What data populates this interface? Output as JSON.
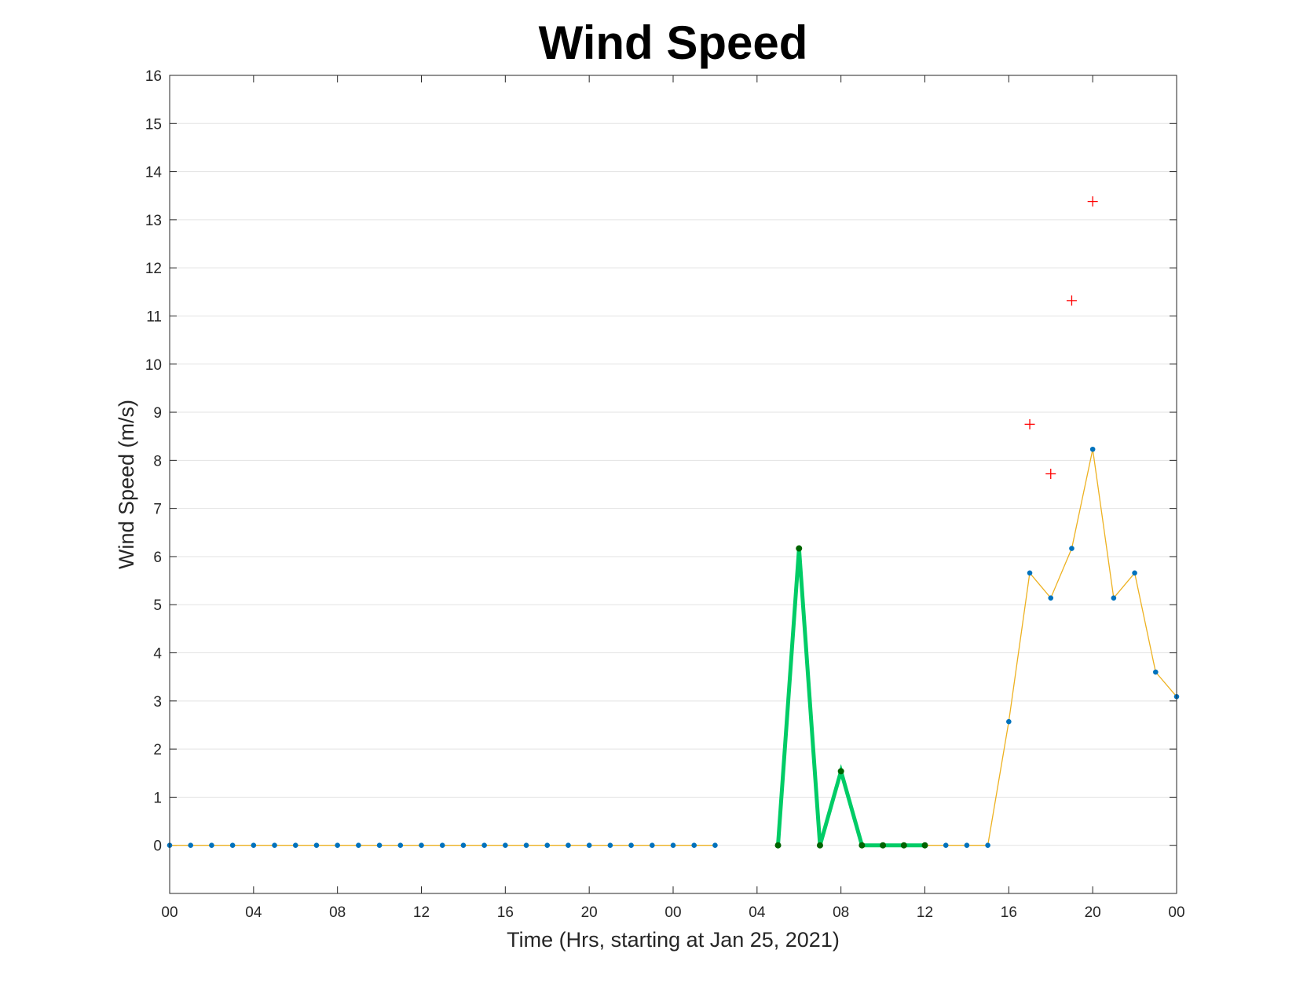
{
  "chart_data": {
    "type": "line",
    "title": "Wind Speed",
    "xlabel": "Time (Hrs, starting at Jan 25, 2021)",
    "ylabel": "Wind Speed (m/s)",
    "xlim": [
      "Jan 25, 2021 00:00",
      "Jan 27, 2021 00:00"
    ],
    "ylim": [
      -1,
      16
    ],
    "grid": "y",
    "x_tick_labels": [
      "00",
      "04",
      "08",
      "12",
      "16",
      "20",
      "00",
      "04",
      "08",
      "12",
      "16",
      "20",
      "00"
    ],
    "y_tick_labels": [
      "0",
      "1",
      "2",
      "3",
      "4",
      "5",
      "6",
      "7",
      "8",
      "9",
      "10",
      "11",
      "12",
      "13",
      "14",
      "15",
      "16"
    ],
    "colors": {
      "base_line": "#EDB120",
      "base_marker": "#0072BD",
      "highlight_line": "#00CC66",
      "highlight_marker": "#006400",
      "gust_marker": "#FF0000"
    },
    "series": [
      {
        "style": "orange line with blue point markers",
        "segments": [
          {
            "x": [
              "Jan 25 00:00",
              "Jan 25 01:00",
              "Jan 25 02:00",
              "Jan 25 03:00",
              "Jan 25 04:00",
              "Jan 25 05:00",
              "Jan 25 06:00",
              "Jan 25 07:00",
              "Jan 25 08:00",
              "Jan 25 09:00",
              "Jan 25 10:00",
              "Jan 25 11:00",
              "Jan 25 12:00",
              "Jan 25 13:00",
              "Jan 25 14:00",
              "Jan 25 15:00",
              "Jan 25 16:00",
              "Jan 25 17:00",
              "Jan 25 18:00",
              "Jan 25 19:00",
              "Jan 25 20:00",
              "Jan 25 21:00",
              "Jan 25 22:00",
              "Jan 25 23:00",
              "Jan 26 00:00",
              "Jan 26 01:00",
              "Jan 26 02:00"
            ],
            "y": [
              0,
              0,
              0,
              0,
              0,
              0,
              0,
              0,
              0,
              0,
              0,
              0,
              0,
              0,
              0,
              0,
              0,
              0,
              0,
              0,
              0,
              0,
              0,
              0,
              0,
              0,
              0
            ]
          },
          {
            "x": [
              "Jan 26 05:00",
              "Jan 26 06:00",
              "Jan 26 07:00",
              "Jan 26 08:00",
              "Jan 26 09:00",
              "Jan 26 10:00",
              "Jan 26 11:00",
              "Jan 26 12:00",
              "Jan 26 13:00",
              "Jan 26 14:00",
              "Jan 26 15:00",
              "Jan 26 16:00",
              "Jan 26 17:00",
              "Jan 26 18:00",
              "Jan 26 19:00",
              "Jan 26 20:00",
              "Jan 26 21:00",
              "Jan 26 22:00",
              "Jan 26 23:00",
              "Jan 27 00:00"
            ],
            "y": [
              0,
              6.17,
              0,
              1.54,
              0,
              0,
              0,
              0,
              0,
              0,
              0,
              2.57,
              5.66,
              5.14,
              6.17,
              8.23,
              5.14,
              5.66,
              3.6,
              3.09
            ]
          }
        ]
      },
      {
        "style": "thick green line with dark green point markers",
        "x": [
          "Jan 26 05:00",
          "Jan 26 06:00",
          "Jan 26 07:00",
          "Jan 26 08:00",
          "Jan 26 09:00",
          "Jan 26 10:00",
          "Jan 26 11:00",
          "Jan 26 12:00"
        ],
        "y": [
          0,
          6.17,
          0,
          1.54,
          0,
          0,
          0,
          0
        ]
      },
      {
        "style": "red plus markers",
        "x": [
          "Jan 26 17:00",
          "Jan 26 18:00",
          "Jan 26 19:00",
          "Jan 26 20:00"
        ],
        "y": [
          8.75,
          7.72,
          11.32,
          13.38
        ]
      }
    ]
  }
}
